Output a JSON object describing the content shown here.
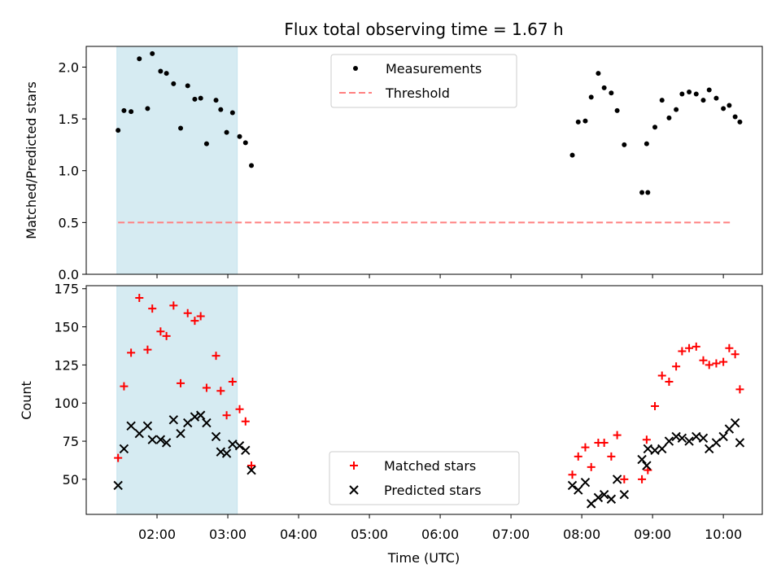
{
  "chart_data": [
    {
      "type": "scatter",
      "title": "Flux total observing time = 1.67 h",
      "xlabel": "",
      "ylabel": "Matched/Predicted stars",
      "ylim": [
        0,
        2.2
      ],
      "yticks": [
        "0.0",
        "0.5",
        "1.0",
        "1.5",
        "2.0"
      ],
      "grid": false,
      "legend_position": "top-center",
      "highlight_span": {
        "from": "01:26",
        "to": "03:08",
        "color": "#add8e6"
      },
      "series": [
        {
          "name": "Measurements",
          "marker": "dot",
          "color": "#000000",
          "points": [
            [
              "01:27",
              1.39
            ],
            [
              "01:32",
              1.58
            ],
            [
              "01:38",
              1.57
            ],
            [
              "01:45",
              2.08
            ],
            [
              "01:52",
              1.6
            ],
            [
              "01:56",
              2.13
            ],
            [
              "02:03",
              1.96
            ],
            [
              "02:08",
              1.94
            ],
            [
              "02:14",
              1.84
            ],
            [
              "02:20",
              1.41
            ],
            [
              "02:26",
              1.82
            ],
            [
              "02:32",
              1.69
            ],
            [
              "02:37",
              1.7
            ],
            [
              "02:42",
              1.26
            ],
            [
              "02:50",
              1.68
            ],
            [
              "02:54",
              1.59
            ],
            [
              "02:59",
              1.37
            ],
            [
              "03:04",
              1.56
            ],
            [
              "03:10",
              1.33
            ],
            [
              "03:15",
              1.27
            ],
            [
              "03:20",
              1.05
            ],
            [
              "07:52",
              1.15
            ],
            [
              "07:57",
              1.47
            ],
            [
              "08:03",
              1.48
            ],
            [
              "08:08",
              1.71
            ],
            [
              "08:14",
              1.94
            ],
            [
              "08:19",
              1.8
            ],
            [
              "08:25",
              1.75
            ],
            [
              "08:30",
              1.58
            ],
            [
              "08:36",
              1.25
            ],
            [
              "08:55",
              1.26
            ],
            [
              "08:51",
              0.79
            ],
            [
              "08:56",
              0.79
            ],
            [
              "09:02",
              1.42
            ],
            [
              "09:08",
              1.68
            ],
            [
              "09:14",
              1.51
            ],
            [
              "09:20",
              1.59
            ],
            [
              "09:25",
              1.74
            ],
            [
              "09:31",
              1.76
            ],
            [
              "09:37",
              1.74
            ],
            [
              "09:43",
              1.68
            ],
            [
              "09:48",
              1.78
            ],
            [
              "09:54",
              1.7
            ],
            [
              "10:00",
              1.6
            ],
            [
              "10:05",
              1.63
            ],
            [
              "10:10",
              1.52
            ],
            [
              "10:14",
              1.47
            ]
          ]
        },
        {
          "name": "Threshold",
          "line_style": "dashed",
          "color": "#ff8080",
          "points": [
            [
              "01:27",
              0.5
            ],
            [
              "10:08",
              0.5
            ]
          ]
        }
      ]
    },
    {
      "type": "scatter",
      "title": "",
      "xlabel": "Time (UTC)",
      "ylabel": "Count",
      "ylim": [
        27,
        177
      ],
      "yticks": [
        "50",
        "75",
        "100",
        "125",
        "150",
        "175"
      ],
      "xticks": [
        "02:00",
        "03:00",
        "04:00",
        "05:00",
        "06:00",
        "07:00",
        "08:00",
        "09:00",
        "10:00"
      ],
      "xlim": [
        "01:00",
        "10:33"
      ],
      "grid": false,
      "legend_position": "bottom-center",
      "highlight_span": {
        "from": "01:26",
        "to": "03:08",
        "color": "#add8e6"
      },
      "series": [
        {
          "name": "Matched stars",
          "marker": "plus",
          "color": "#ff0000",
          "points": [
            [
              "01:27",
              64
            ],
            [
              "01:32",
              111
            ],
            [
              "01:38",
              133
            ],
            [
              "01:45",
              169
            ],
            [
              "01:52",
              135
            ],
            [
              "01:56",
              162
            ],
            [
              "02:03",
              147
            ],
            [
              "02:08",
              144
            ],
            [
              "02:14",
              164
            ],
            [
              "02:20",
              113
            ],
            [
              "02:26",
              159
            ],
            [
              "02:32",
              154
            ],
            [
              "02:37",
              157
            ],
            [
              "02:42",
              110
            ],
            [
              "02:50",
              131
            ],
            [
              "02:54",
              108
            ],
            [
              "02:59",
              92
            ],
            [
              "03:04",
              114
            ],
            [
              "03:10",
              96
            ],
            [
              "03:15",
              88
            ],
            [
              "03:20",
              59
            ],
            [
              "07:52",
              53
            ],
            [
              "07:57",
              65
            ],
            [
              "08:03",
              71
            ],
            [
              "08:08",
              58
            ],
            [
              "08:14",
              74
            ],
            [
              "08:19",
              74
            ],
            [
              "08:25",
              65
            ],
            [
              "08:30",
              79
            ],
            [
              "08:36",
              50
            ],
            [
              "08:51",
              50
            ],
            [
              "08:55",
              76
            ],
            [
              "08:56",
              56
            ],
            [
              "09:02",
              98
            ],
            [
              "09:08",
              118
            ],
            [
              "09:14",
              114
            ],
            [
              "09:20",
              124
            ],
            [
              "09:25",
              134
            ],
            [
              "09:31",
              136
            ],
            [
              "09:37",
              137
            ],
            [
              "09:43",
              128
            ],
            [
              "09:48",
              125
            ],
            [
              "09:54",
              126
            ],
            [
              "10:00",
              127
            ],
            [
              "10:05",
              136
            ],
            [
              "10:10",
              132
            ],
            [
              "10:14",
              109
            ]
          ]
        },
        {
          "name": "Predicted stars",
          "marker": "x",
          "color": "#000000",
          "points": [
            [
              "01:27",
              46
            ],
            [
              "01:32",
              70
            ],
            [
              "01:38",
              85
            ],
            [
              "01:45",
              80
            ],
            [
              "01:52",
              85
            ],
            [
              "01:56",
              76
            ],
            [
              "02:03",
              76
            ],
            [
              "02:08",
              74
            ],
            [
              "02:14",
              89
            ],
            [
              "02:20",
              80
            ],
            [
              "02:26",
              87
            ],
            [
              "02:32",
              91
            ],
            [
              "02:37",
              92
            ],
            [
              "02:42",
              87
            ],
            [
              "02:50",
              78
            ],
            [
              "02:54",
              68
            ],
            [
              "02:59",
              67
            ],
            [
              "03:04",
              73
            ],
            [
              "03:10",
              72
            ],
            [
              "03:15",
              69
            ],
            [
              "03:20",
              56
            ],
            [
              "07:52",
              46
            ],
            [
              "07:57",
              43
            ],
            [
              "08:03",
              48
            ],
            [
              "08:08",
              34
            ],
            [
              "08:14",
              38
            ],
            [
              "08:19",
              40
            ],
            [
              "08:25",
              37
            ],
            [
              "08:30",
              50
            ],
            [
              "08:36",
              40
            ],
            [
              "08:51",
              63
            ],
            [
              "08:55",
              59
            ],
            [
              "08:56",
              70
            ],
            [
              "09:02",
              69
            ],
            [
              "09:08",
              70
            ],
            [
              "09:14",
              75
            ],
            [
              "09:20",
              78
            ],
            [
              "09:25",
              77
            ],
            [
              "09:31",
              75
            ],
            [
              "09:37",
              78
            ],
            [
              "09:43",
              77
            ],
            [
              "09:48",
              70
            ],
            [
              "09:54",
              74
            ],
            [
              "10:00",
              78
            ],
            [
              "10:05",
              83
            ],
            [
              "10:10",
              87
            ],
            [
              "10:14",
              74
            ]
          ]
        }
      ]
    }
  ]
}
